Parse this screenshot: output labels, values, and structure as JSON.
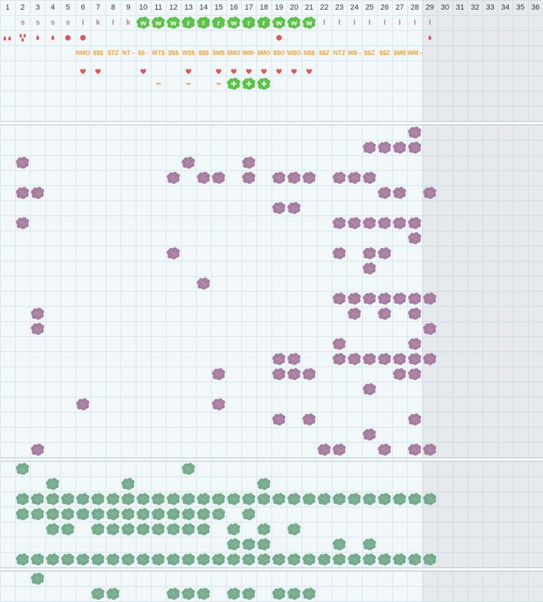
{
  "column_numbers": [
    "1",
    "2",
    "3",
    "4",
    "5",
    "6",
    "7",
    "8",
    "9",
    "10",
    "11",
    "12",
    "13",
    "14",
    "15",
    "16",
    "17",
    "18",
    "19",
    "20",
    "21",
    "22",
    "23",
    "24",
    "25",
    "26",
    "27",
    "28",
    "29",
    "30",
    "31",
    "32",
    "33",
    "34",
    "35",
    "36"
  ],
  "colors": {
    "grid_background": "#f2f7fa",
    "grid_line": "#d4e5ee",
    "purple_blob": "#a77d9f",
    "green_blob": "#75ab8c",
    "bright_green_chip": "#5cc24a",
    "heart_red": "#e0545c",
    "label_orange": "#f0a23a",
    "letter_purple": "#b1879e",
    "unavailable_shade": "#e6e6e6"
  },
  "track_rows": {
    "letters": [
      {
        "col": 2,
        "text": "s",
        "style": "purple"
      },
      {
        "col": 3,
        "text": "s",
        "style": "purple"
      },
      {
        "col": 4,
        "text": "s",
        "style": "purple"
      },
      {
        "col": 5,
        "text": "s",
        "style": "purple"
      },
      {
        "col": 6,
        "text": "I",
        "style": "purple"
      },
      {
        "col": 7,
        "text": "k",
        "style": "purple"
      },
      {
        "col": 8,
        "text": "I",
        "style": "purple"
      },
      {
        "col": 9,
        "text": "k",
        "style": "purple"
      },
      {
        "col": 10,
        "text": "w",
        "style": "chip"
      },
      {
        "col": 11,
        "text": "w",
        "style": "chip"
      },
      {
        "col": 12,
        "text": "w",
        "style": "chip"
      },
      {
        "col": 13,
        "text": "r",
        "style": "chip"
      },
      {
        "col": 14,
        "text": "r",
        "style": "chip"
      },
      {
        "col": 15,
        "text": "r",
        "style": "chip"
      },
      {
        "col": 16,
        "text": "w",
        "style": "chip"
      },
      {
        "col": 17,
        "text": "r",
        "style": "chip"
      },
      {
        "col": 18,
        "text": "r",
        "style": "chip"
      },
      {
        "col": 19,
        "text": "w",
        "style": "chip"
      },
      {
        "col": 20,
        "text": "w",
        "style": "chip"
      },
      {
        "col": 21,
        "text": "w",
        "style": "chip"
      },
      {
        "col": 22,
        "text": "I",
        "style": "purple"
      },
      {
        "col": 23,
        "text": "I",
        "style": "purple"
      },
      {
        "col": 24,
        "text": "I",
        "style": "purple"
      },
      {
        "col": 25,
        "text": "I",
        "style": "purple"
      },
      {
        "col": 26,
        "text": "I",
        "style": "purple"
      },
      {
        "col": 27,
        "text": "I",
        "style": "purple"
      },
      {
        "col": 28,
        "text": "I",
        "style": "purple"
      },
      {
        "col": 29,
        "text": "I",
        "style": "purple"
      }
    ],
    "drops": [
      {
        "col": 1,
        "icon": "double-drop-icon"
      },
      {
        "col": 2,
        "icon": "triple-drop-icon"
      },
      {
        "col": 3,
        "icon": "drop-icon"
      },
      {
        "col": 4,
        "icon": "drop-icon"
      },
      {
        "col": 5,
        "icon": "dot-icon"
      },
      {
        "col": 6,
        "icon": "dot-icon"
      },
      {
        "col": 19,
        "icon": "dot-icon"
      },
      {
        "col": 29,
        "icon": "drop-icon"
      }
    ],
    "codes": [
      {
        "col": 6,
        "text": "NMO"
      },
      {
        "col": 7,
        "text": "$$$"
      },
      {
        "col": 8,
        "text": "$TZ"
      },
      {
        "col": 9,
        "text": "NT -"
      },
      {
        "col": 10,
        "text": "$$ -"
      },
      {
        "col": 11,
        "text": "WT$"
      },
      {
        "col": 12,
        "text": "$$$"
      },
      {
        "col": 13,
        "text": "W$$"
      },
      {
        "col": 14,
        "text": "$$$"
      },
      {
        "col": 15,
        "text": "$M$"
      },
      {
        "col": 16,
        "text": "$MO"
      },
      {
        "col": 17,
        "text": "WM-"
      },
      {
        "col": 18,
        "text": "$MO"
      },
      {
        "col": 19,
        "text": "$$O"
      },
      {
        "col": 20,
        "text": "W$O"
      },
      {
        "col": 21,
        "text": "N$$"
      },
      {
        "col": 22,
        "text": "$$Z"
      },
      {
        "col": 23,
        "text": "NTZ"
      },
      {
        "col": 24,
        "text": "W$ -"
      },
      {
        "col": 25,
        "text": "$$Z"
      },
      {
        "col": 26,
        "text": "$$Z"
      },
      {
        "col": 27,
        "text": "$M$"
      },
      {
        "col": 28,
        "text": "WM -"
      }
    ],
    "hearts": [
      6,
      7,
      10,
      13,
      15,
      16,
      17,
      18,
      19,
      20,
      21
    ],
    "dashes": [
      11,
      13,
      15
    ],
    "plus_chips": [
      16,
      17,
      18
    ]
  },
  "purple_section": {
    "cells": [
      [
        0,
        28
      ],
      [
        1,
        25
      ],
      [
        1,
        26
      ],
      [
        1,
        27
      ],
      [
        1,
        28
      ],
      [
        2,
        2
      ],
      [
        2,
        13
      ],
      [
        2,
        17
      ],
      [
        3,
        12
      ],
      [
        3,
        14
      ],
      [
        3,
        15
      ],
      [
        3,
        17
      ],
      [
        3,
        19
      ],
      [
        3,
        20
      ],
      [
        3,
        21
      ],
      [
        3,
        23
      ],
      [
        3,
        24
      ],
      [
        3,
        25
      ],
      [
        4,
        2
      ],
      [
        4,
        3
      ],
      [
        4,
        26
      ],
      [
        4,
        27
      ],
      [
        4,
        29
      ],
      [
        5,
        19
      ],
      [
        5,
        20
      ],
      [
        6,
        2
      ],
      [
        6,
        23
      ],
      [
        6,
        24
      ],
      [
        6,
        25
      ],
      [
        6,
        26
      ],
      [
        6,
        27
      ],
      [
        6,
        28
      ],
      [
        7,
        28
      ],
      [
        8,
        12
      ],
      [
        8,
        23
      ],
      [
        8,
        25
      ],
      [
        8,
        26
      ],
      [
        9,
        25
      ],
      [
        10,
        14
      ],
      [
        11,
        23
      ],
      [
        11,
        24
      ],
      [
        11,
        25
      ],
      [
        11,
        26
      ],
      [
        11,
        27
      ],
      [
        11,
        28
      ],
      [
        11,
        29
      ],
      [
        12,
        3
      ],
      [
        12,
        24
      ],
      [
        12,
        26
      ],
      [
        12,
        28
      ],
      [
        13,
        3
      ],
      [
        13,
        29
      ],
      [
        14,
        23
      ],
      [
        14,
        28
      ],
      [
        15,
        19
      ],
      [
        15,
        20
      ],
      [
        15,
        23
      ],
      [
        15,
        24
      ],
      [
        15,
        25
      ],
      [
        15,
        26
      ],
      [
        15,
        27
      ],
      [
        15,
        28
      ],
      [
        15,
        29
      ],
      [
        16,
        15
      ],
      [
        16,
        19
      ],
      [
        16,
        20
      ],
      [
        16,
        21
      ],
      [
        16,
        27
      ],
      [
        16,
        28
      ],
      [
        17,
        25
      ],
      [
        18,
        6
      ],
      [
        18,
        15
      ],
      [
        19,
        19
      ],
      [
        19,
        21
      ],
      [
        19,
        28
      ],
      [
        20,
        25
      ],
      [
        21,
        3
      ],
      [
        21,
        22
      ],
      [
        21,
        23
      ],
      [
        21,
        26
      ],
      [
        21,
        28
      ],
      [
        21,
        29
      ]
    ]
  },
  "green_section": {
    "cells": [
      [
        0,
        2
      ],
      [
        0,
        13
      ],
      [
        1,
        4
      ],
      [
        1,
        9
      ],
      [
        1,
        18
      ],
      [
        2,
        2
      ],
      [
        2,
        3
      ],
      [
        2,
        4
      ],
      [
        2,
        5
      ],
      [
        2,
        6
      ],
      [
        2,
        7
      ],
      [
        2,
        8
      ],
      [
        2,
        9
      ],
      [
        2,
        10
      ],
      [
        2,
        11
      ],
      [
        2,
        12
      ],
      [
        2,
        13
      ],
      [
        2,
        14
      ],
      [
        2,
        15
      ],
      [
        2,
        16
      ],
      [
        2,
        17
      ],
      [
        2,
        18
      ],
      [
        2,
        19
      ],
      [
        2,
        20
      ],
      [
        2,
        21
      ],
      [
        2,
        22
      ],
      [
        2,
        23
      ],
      [
        2,
        24
      ],
      [
        2,
        25
      ],
      [
        2,
        26
      ],
      [
        2,
        27
      ],
      [
        2,
        28
      ],
      [
        2,
        29
      ],
      [
        3,
        2
      ],
      [
        3,
        3
      ],
      [
        3,
        4
      ],
      [
        3,
        5
      ],
      [
        3,
        6
      ],
      [
        3,
        7
      ],
      [
        3,
        8
      ],
      [
        3,
        9
      ],
      [
        3,
        10
      ],
      [
        3,
        11
      ],
      [
        3,
        12
      ],
      [
        3,
        13
      ],
      [
        3,
        14
      ],
      [
        3,
        15
      ],
      [
        3,
        17
      ],
      [
        4,
        4
      ],
      [
        4,
        5
      ],
      [
        4,
        7
      ],
      [
        4,
        8
      ],
      [
        4,
        9
      ],
      [
        4,
        10
      ],
      [
        4,
        11
      ],
      [
        4,
        12
      ],
      [
        4,
        13
      ],
      [
        4,
        14
      ],
      [
        4,
        16
      ],
      [
        4,
        18
      ],
      [
        4,
        20
      ],
      [
        5,
        16
      ],
      [
        5,
        17
      ],
      [
        5,
        18
      ],
      [
        5,
        23
      ],
      [
        5,
        25
      ],
      [
        6,
        2
      ],
      [
        6,
        3
      ],
      [
        6,
        4
      ],
      [
        6,
        5
      ],
      [
        6,
        6
      ],
      [
        6,
        7
      ],
      [
        6,
        8
      ],
      [
        6,
        9
      ],
      [
        6,
        10
      ],
      [
        6,
        11
      ],
      [
        6,
        12
      ],
      [
        6,
        13
      ],
      [
        6,
        14
      ],
      [
        6,
        15
      ],
      [
        6,
        16
      ],
      [
        6,
        17
      ],
      [
        6,
        18
      ],
      [
        6,
        19
      ],
      [
        6,
        20
      ],
      [
        6,
        21
      ],
      [
        6,
        22
      ],
      [
        6,
        23
      ],
      [
        6,
        24
      ],
      [
        6,
        25
      ],
      [
        6,
        26
      ],
      [
        6,
        27
      ],
      [
        6,
        28
      ],
      [
        6,
        29
      ]
    ]
  },
  "bottom_section": {
    "cells": [
      [
        0,
        3
      ],
      [
        1,
        7
      ],
      [
        1,
        8
      ],
      [
        1,
        12
      ],
      [
        1,
        13
      ],
      [
        1,
        14
      ],
      [
        1,
        16
      ],
      [
        1,
        17
      ],
      [
        1,
        19
      ],
      [
        1,
        20
      ],
      [
        1,
        21
      ]
    ]
  }
}
